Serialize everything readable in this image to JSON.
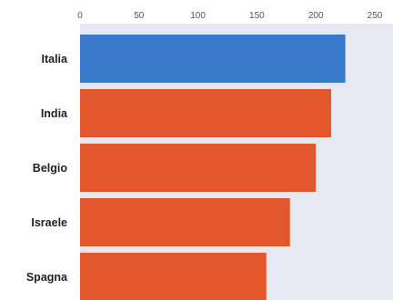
{
  "chart_data": {
    "type": "bar",
    "orientation": "horizontal",
    "title": "",
    "xlabel": "",
    "ylabel": "",
    "categories": [
      "Italia",
      "India",
      "Belgio",
      "Israele",
      "Spagna"
    ],
    "values": [
      225,
      213,
      200,
      178,
      158
    ],
    "xlim": [
      0,
      250
    ],
    "x_ticks": [
      0,
      50,
      100,
      150,
      200,
      250
    ],
    "x_tick_labels": [
      "0",
      "50",
      "100",
      "150",
      "200",
      "250"
    ],
    "x_axis_position": "top",
    "grid": false,
    "legend": "none",
    "colors": {
      "highlight": "#3a78c9",
      "bar": "#e2572b",
      "plot_background": "#e6e9f3"
    },
    "highlight_category": "Italia"
  }
}
